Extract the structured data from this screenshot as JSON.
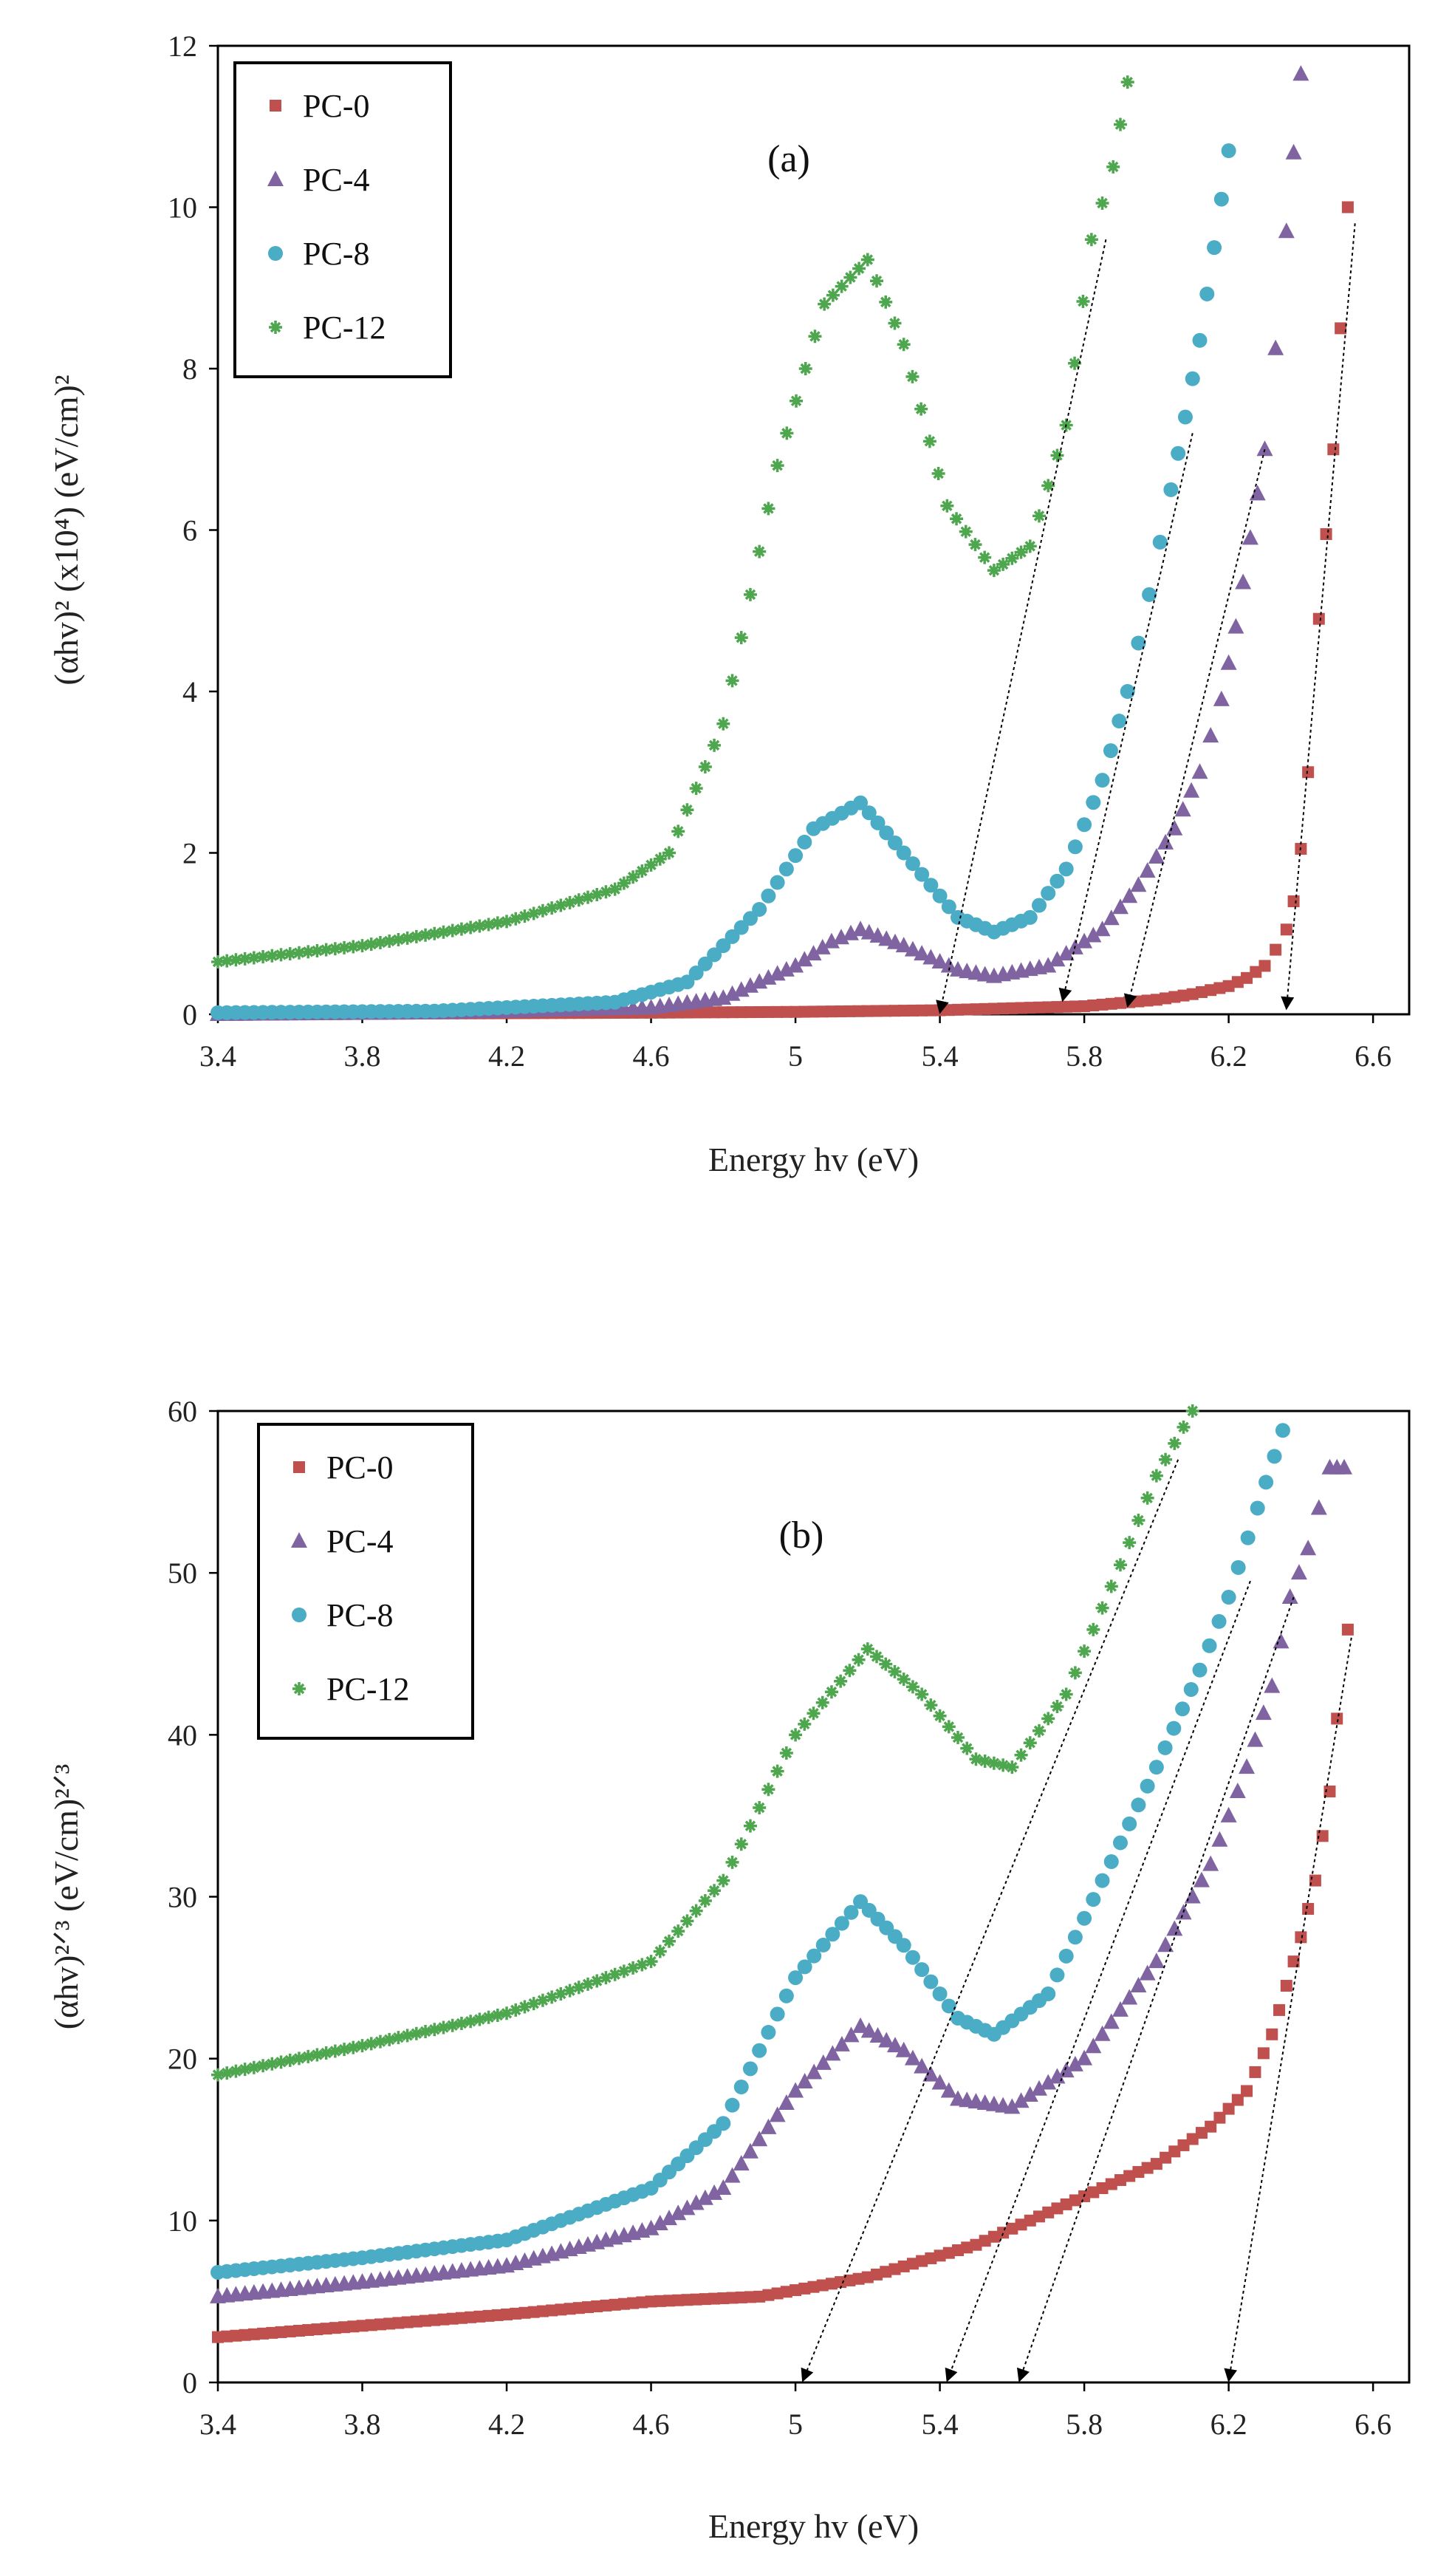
{
  "chart_data": [
    {
      "type": "scatter",
      "panel_label": "(a)",
      "xlabel": "Energy hv (eV)",
      "ylabel": "(αhv)² (x10⁴) (eV/cm)²",
      "xlim": [
        3.4,
        6.7
      ],
      "ylim": [
        0,
        12
      ],
      "xticks": [
        "3.4",
        "3.8",
        "4.2",
        "4.6",
        "5",
        "5.4",
        "5.8",
        "6.2",
        "6.6"
      ],
      "yticks": [
        "0",
        "2",
        "4",
        "6",
        "8",
        "10",
        "12"
      ],
      "legend_position": "top-left",
      "series": [
        {
          "name": "PC-0",
          "marker": "square",
          "color": "#c0504d",
          "x": [
            3.4,
            4.0,
            4.6,
            5.0,
            5.4,
            5.8,
            6.0,
            6.1,
            6.2,
            6.25,
            6.3,
            6.33,
            6.36,
            6.38,
            6.4,
            6.42,
            6.45,
            6.49,
            6.53
          ],
          "y": [
            0.0,
            0.01,
            0.02,
            0.03,
            0.05,
            0.1,
            0.18,
            0.25,
            0.35,
            0.45,
            0.6,
            0.8,
            1.05,
            1.4,
            2.05,
            3.0,
            4.9,
            7.0,
            10.0
          ]
        },
        {
          "name": "PC-4",
          "marker": "triangle",
          "color": "#8064a2",
          "x": [
            3.4,
            4.0,
            4.6,
            4.8,
            5.0,
            5.1,
            5.18,
            5.3,
            5.45,
            5.55,
            5.7,
            5.85,
            5.95,
            6.05,
            6.12,
            6.18,
            6.22,
            6.26,
            6.3,
            6.33,
            6.36,
            6.4
          ],
          "y": [
            0.0,
            0.02,
            0.08,
            0.2,
            0.6,
            0.9,
            1.05,
            0.85,
            0.55,
            0.47,
            0.6,
            1.05,
            1.6,
            2.3,
            3.0,
            3.9,
            4.8,
            5.9,
            7.0,
            8.25,
            9.7,
            11.65
          ]
        },
        {
          "name": "PC-8",
          "marker": "circle",
          "color": "#4bacc6",
          "x": [
            3.4,
            4.0,
            4.5,
            4.7,
            4.9,
            5.05,
            5.18,
            5.3,
            5.45,
            5.55,
            5.65,
            5.75,
            5.85,
            5.92,
            5.98,
            6.04,
            6.08,
            6.12,
            6.16,
            6.2
          ],
          "y": [
            0.02,
            0.04,
            0.15,
            0.4,
            1.3,
            2.3,
            2.62,
            2.0,
            1.2,
            1.02,
            1.2,
            1.8,
            2.9,
            4.0,
            5.2,
            6.5,
            7.4,
            8.35,
            9.5,
            10.7
          ]
        },
        {
          "name": "PC-12",
          "marker": "star",
          "color": "#4ea64e",
          "x": [
            3.4,
            3.8,
            4.2,
            4.5,
            4.65,
            4.8,
            4.95,
            5.08,
            5.2,
            5.3,
            5.42,
            5.55,
            5.65,
            5.75,
            5.82,
            5.88,
            5.92
          ],
          "y": [
            0.65,
            0.85,
            1.15,
            1.55,
            2.0,
            3.6,
            6.8,
            8.8,
            9.35,
            8.3,
            6.3,
            5.5,
            5.8,
            7.3,
            9.6,
            10.5,
            11.55
          ]
        }
      ],
      "annotations": [
        {
          "type": "arrow",
          "from": [
            5.86,
            9.6
          ],
          "to": [
            5.4,
            0.0
          ]
        },
        {
          "type": "arrow",
          "from": [
            6.1,
            7.2
          ],
          "to": [
            5.74,
            0.15
          ]
        },
        {
          "type": "arrow",
          "from": [
            6.3,
            7.0
          ],
          "to": [
            5.92,
            0.08
          ]
        },
        {
          "type": "arrow",
          "from": [
            6.55,
            9.8
          ],
          "to": [
            6.36,
            0.05
          ]
        }
      ]
    },
    {
      "type": "scatter",
      "panel_label": "(b)",
      "xlabel": "Energy hv (eV)",
      "ylabel": "(αhv)²ᐟ³ (eV/cm)²ᐟ³",
      "xlim": [
        3.4,
        6.7
      ],
      "ylim": [
        0,
        60
      ],
      "xticks": [
        "3.4",
        "3.8",
        "4.2",
        "4.6",
        "5",
        "5.4",
        "5.8",
        "6.2",
        "6.6"
      ],
      "yticks": [
        "0",
        "10",
        "20",
        "30",
        "40",
        "50",
        "60"
      ],
      "legend_position": "top-left",
      "series": [
        {
          "name": "PC-0",
          "marker": "square",
          "color": "#c0504d",
          "x": [
            3.4,
            3.8,
            4.2,
            4.6,
            4.9,
            5.2,
            5.5,
            5.8,
            6.0,
            6.15,
            6.25,
            6.32,
            6.36,
            6.4,
            6.44,
            6.48,
            6.5,
            6.53
          ],
          "y": [
            2.8,
            3.5,
            4.2,
            5.0,
            5.3,
            6.5,
            8.5,
            11.5,
            13.5,
            15.8,
            18.0,
            21.5,
            24.5,
            27.5,
            31.0,
            36.5,
            41.0,
            46.5
          ]
        },
        {
          "name": "PC-4",
          "marker": "triangle",
          "color": "#8064a2",
          "x": [
            3.4,
            3.8,
            4.2,
            4.6,
            4.8,
            5.0,
            5.18,
            5.3,
            5.45,
            5.6,
            5.8,
            6.0,
            6.15,
            6.25,
            6.32,
            6.37,
            6.42,
            6.48,
            6.52
          ],
          "y": [
            5.3,
            6.2,
            7.2,
            9.5,
            12.0,
            18.0,
            22.0,
            20.5,
            17.5,
            17.0,
            20.0,
            26.0,
            32.0,
            38.0,
            43.0,
            48.5,
            51.5,
            56.5,
            56.5
          ]
        },
        {
          "name": "PC-8",
          "marker": "circle",
          "color": "#4bacc6",
          "x": [
            3.4,
            3.8,
            4.2,
            4.6,
            4.8,
            5.0,
            5.18,
            5.3,
            5.45,
            5.55,
            5.7,
            5.85,
            6.0,
            6.12,
            6.2,
            6.28,
            6.35
          ],
          "y": [
            6.8,
            7.7,
            8.8,
            12.0,
            16.0,
            25.0,
            29.7,
            27.0,
            22.5,
            21.5,
            24.0,
            31.0,
            38.0,
            44.0,
            48.5,
            54.0,
            58.8
          ]
        },
        {
          "name": "PC-12",
          "marker": "star",
          "color": "#4ea64e",
          "x": [
            3.4,
            3.8,
            4.2,
            4.6,
            4.8,
            5.0,
            5.2,
            5.35,
            5.5,
            5.6,
            5.75,
            5.9,
            6.0,
            6.1
          ],
          "y": [
            19.0,
            20.8,
            22.8,
            26.0,
            31.0,
            40.0,
            45.3,
            42.5,
            38.5,
            38.0,
            42.5,
            50.5,
            56.0,
            60.0
          ]
        }
      ],
      "annotations": [
        {
          "type": "arrow",
          "from": [
            6.06,
            57.0
          ],
          "to": [
            5.02,
            0.0
          ]
        },
        {
          "type": "arrow",
          "from": [
            6.26,
            49.5
          ],
          "to": [
            5.42,
            0.0
          ]
        },
        {
          "type": "arrow",
          "from": [
            6.38,
            48.5
          ],
          "to": [
            5.62,
            0.0
          ]
        },
        {
          "type": "arrow",
          "from": [
            6.54,
            46.0
          ],
          "to": [
            6.2,
            0.0
          ]
        }
      ]
    }
  ]
}
